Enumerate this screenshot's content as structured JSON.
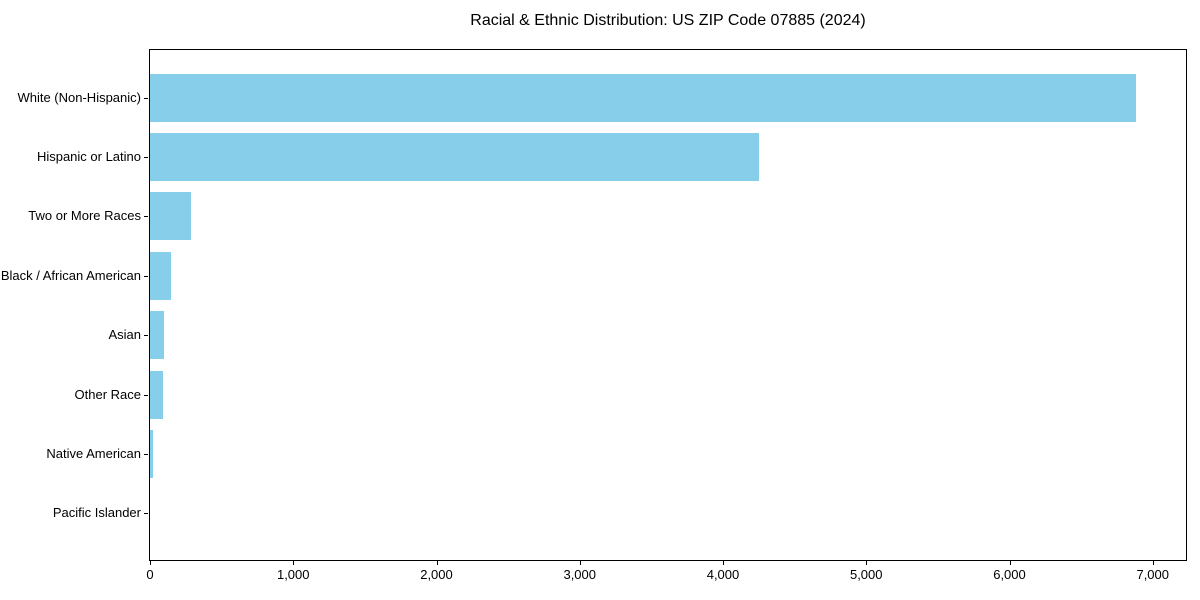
{
  "chart_data": {
    "type": "bar",
    "orientation": "horizontal",
    "title": "Racial & Ethnic Distribution: US ZIP Code 07885 (2024)",
    "categories": [
      "White (Non-Hispanic)",
      "Hispanic or Latino",
      "Two or More Races",
      "Black / African American",
      "Asian",
      "Other Race",
      "Native American",
      "Pacific Islander"
    ],
    "values": [
      6880,
      4250,
      285,
      150,
      100,
      90,
      20,
      0
    ],
    "xlabel": "",
    "ylabel": "",
    "xlim": [
      0,
      7232
    ],
    "xticks": [
      0,
      1000,
      2000,
      3000,
      4000,
      5000,
      6000,
      7000
    ],
    "xtick_labels": [
      "0",
      "1,000",
      "2,000",
      "3,000",
      "4,000",
      "5,000",
      "6,000",
      "7,000"
    ],
    "bar_color": "#87CEEB",
    "axis_color": "#000000",
    "background_color": "#ffffff",
    "grid": false,
    "legend": null
  }
}
